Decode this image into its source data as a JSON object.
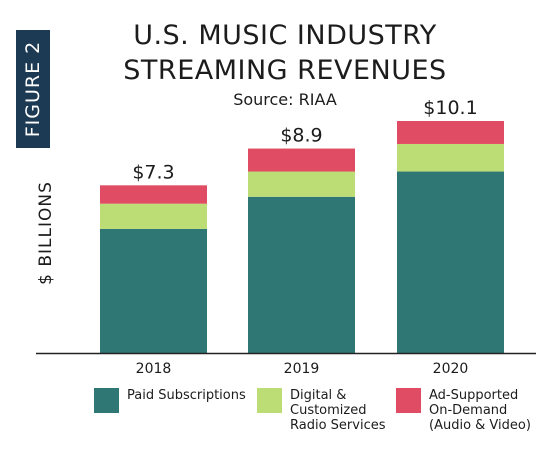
{
  "figure_tab": "FIGURE 2",
  "title_line1": "U.S. MUSIC INDUSTRY",
  "title_line2": "STREAMING REVENUES",
  "subtitle": "Source: RIAA",
  "colors": {
    "paid": "#2e7775",
    "digital": "#bcdd76",
    "ad": "#df4c63",
    "tab": "#1d3a55"
  },
  "chart_data": {
    "type": "bar",
    "stacked": true,
    "title": "U.S. MUSIC INDUSTRY STREAMING REVENUES",
    "subtitle": "Source: RIAA",
    "ylabel": "$ BILLIONS",
    "xlabel": "",
    "categories": [
      "2018",
      "2019",
      "2020"
    ],
    "series": [
      {
        "name": "Paid Subscriptions",
        "values": [
          5.4,
          6.8,
          7.9
        ],
        "color": "#2e7775"
      },
      {
        "name": "Digital & Customized Radio Services",
        "values": [
          1.1,
          1.1,
          1.2
        ],
        "color": "#bcdd76"
      },
      {
        "name": "Ad-Supported On-Demand (Audio & Video)",
        "values": [
          0.8,
          1.0,
          1.0
        ],
        "color": "#df4c63"
      }
    ],
    "totals": [
      7.3,
      8.9,
      10.1
    ],
    "total_labels": [
      "$7.3",
      "$8.9",
      "$10.1"
    ],
    "ylim": [
      0,
      10.1
    ],
    "grid": false,
    "legend_position": "bottom"
  },
  "legend": [
    {
      "lines": [
        "Paid Subscriptions"
      ],
      "color": "#2e7775"
    },
    {
      "lines": [
        "Digital &",
        "Customized",
        "Radio Services"
      ],
      "color": "#bcdd76"
    },
    {
      "lines": [
        "Ad-Supported",
        "On-Demand",
        "(Audio & Video)"
      ],
      "color": "#df4c63"
    }
  ]
}
